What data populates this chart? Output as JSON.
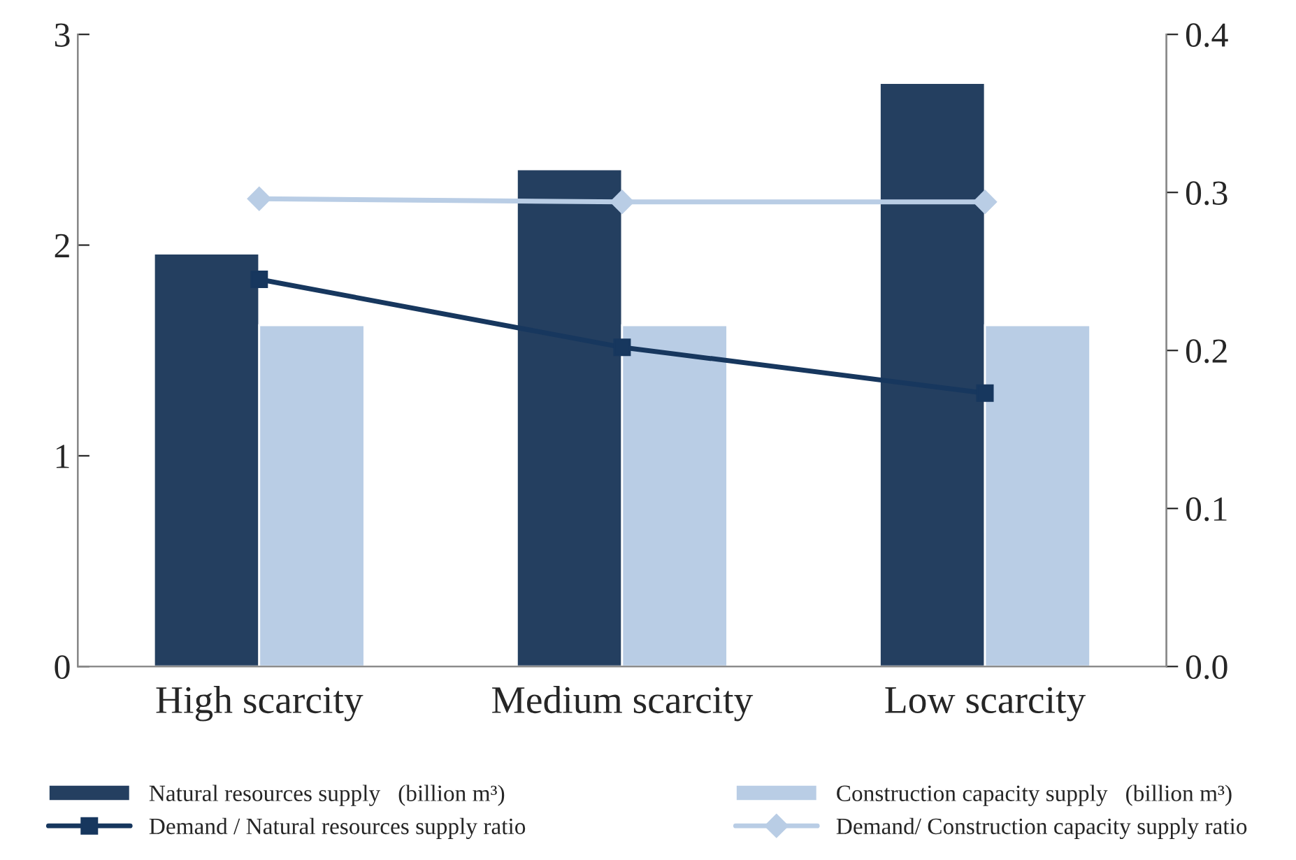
{
  "chart_data": {
    "type": "bar",
    "categories": [
      "High scarcity",
      "Medium scarcity",
      "Low scarcity"
    ],
    "series": [
      {
        "name": "Natural resources supply   (billion m³)",
        "color": "#243f60",
        "values": [
          1.96,
          2.36,
          2.77
        ]
      },
      {
        "name": "Construction capacity supply   (billion m³)",
        "color": "#b9cde5",
        "values": [
          1.62,
          1.62,
          1.62
        ]
      },
      {
        "name": "Demand / Natural resources supply ratio",
        "type": "line",
        "axis": "y2",
        "color": "#17375e",
        "marker": "square",
        "values": [
          0.245,
          0.202,
          0.173
        ]
      },
      {
        "name": "Demand/ Construction capacity supply ratio",
        "type": "line",
        "axis": "y2",
        "color": "#b9cde5",
        "marker": "diamond",
        "values": [
          0.296,
          0.294,
          0.294
        ]
      }
    ],
    "ylim": [
      0,
      3
    ],
    "yticks": [
      0,
      1,
      2,
      3
    ],
    "y2lim": [
      0,
      0.4
    ],
    "y2ticks": [
      {
        "value": 0,
        "label": "0.0"
      },
      0.1,
      0.2,
      0.3,
      0.4
    ],
    "grid": false,
    "legend": "bottom"
  }
}
